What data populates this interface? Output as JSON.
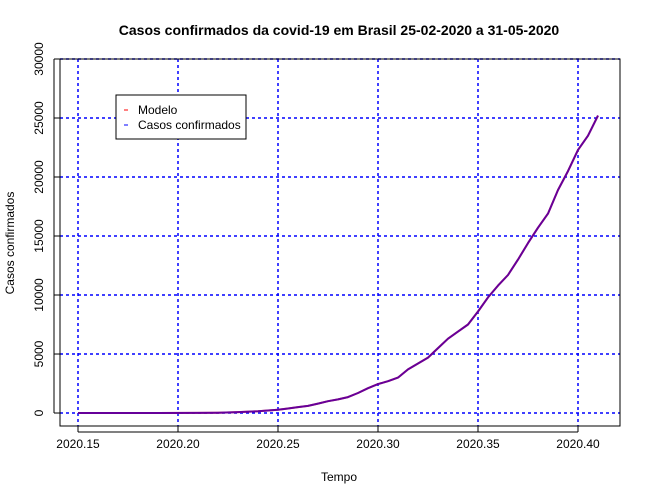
{
  "chart_data": {
    "type": "line",
    "title": "Casos confirmados da covid-19 em Brasil 25-02-2020 a 31-05-2020",
    "xlabel": "Tempo",
    "ylabel": "Casos confirmados",
    "xlim": [
      2020.141,
      2020.421
    ],
    "ylim": [
      -1100,
      30000
    ],
    "xticks": [
      2020.15,
      2020.2,
      2020.25,
      2020.3,
      2020.35,
      2020.4
    ],
    "xtick_labels": [
      "2020.15",
      "2020.20",
      "2020.25",
      "2020.30",
      "2020.35",
      "2020.40"
    ],
    "yticks": [
      0,
      5000,
      10000,
      15000,
      20000,
      25000,
      30000
    ],
    "ytick_labels": [
      "0",
      "5000",
      "10000",
      "15000",
      "20000",
      "25000",
      "30000"
    ],
    "grid": true,
    "grid_color": "#0000ff",
    "legend_position": "top-left",
    "series": [
      {
        "name": "Modelo",
        "color": "#ff0000",
        "x": [
          2020.15,
          2020.17,
          2020.19,
          2020.21,
          2020.22,
          2020.23,
          2020.24,
          2020.25,
          2020.255,
          2020.26,
          2020.265,
          2020.27,
          2020.275,
          2020.28,
          2020.285,
          2020.29,
          2020.295,
          2020.3,
          2020.305,
          2020.31,
          2020.315,
          2020.32,
          2020.325,
          2020.33,
          2020.335,
          2020.34,
          2020.345,
          2020.35,
          2020.355,
          2020.36,
          2020.365,
          2020.37,
          2020.375,
          2020.38,
          2020.385,
          2020.39,
          2020.395,
          2020.4,
          2020.405,
          2020.41
        ],
        "y": [
          0,
          0,
          0,
          10,
          30,
          80,
          150,
          280,
          380,
          500,
          600,
          800,
          1000,
          1150,
          1350,
          1700,
          2100,
          2450,
          2700,
          3000,
          3700,
          4200,
          4700,
          5500,
          6300,
          6900,
          7500,
          8600,
          9800,
          10800,
          11700,
          13000,
          14400,
          15700,
          16900,
          18900,
          20500,
          22300,
          23500,
          25200
        ]
      },
      {
        "name": "Casos confirmados",
        "color": "#0000ff",
        "x": [
          2020.15,
          2020.17,
          2020.19,
          2020.21,
          2020.22,
          2020.23,
          2020.24,
          2020.25,
          2020.255,
          2020.26,
          2020.265,
          2020.27,
          2020.275,
          2020.28,
          2020.285,
          2020.29,
          2020.295,
          2020.3,
          2020.305,
          2020.31,
          2020.315,
          2020.32,
          2020.325,
          2020.33,
          2020.335,
          2020.34,
          2020.345,
          2020.35,
          2020.355,
          2020.36,
          2020.365,
          2020.37,
          2020.375,
          2020.38,
          2020.385,
          2020.39,
          2020.395,
          2020.4,
          2020.405,
          2020.41
        ],
        "y": [
          0,
          0,
          0,
          10,
          30,
          80,
          150,
          280,
          380,
          500,
          600,
          800,
          1000,
          1150,
          1350,
          1700,
          2100,
          2450,
          2700,
          3000,
          3700,
          4200,
          4700,
          5500,
          6300,
          6900,
          7500,
          8600,
          9800,
          10800,
          11700,
          13000,
          14400,
          15700,
          16900,
          18900,
          20500,
          22300,
          23500,
          25200
        ]
      }
    ]
  }
}
